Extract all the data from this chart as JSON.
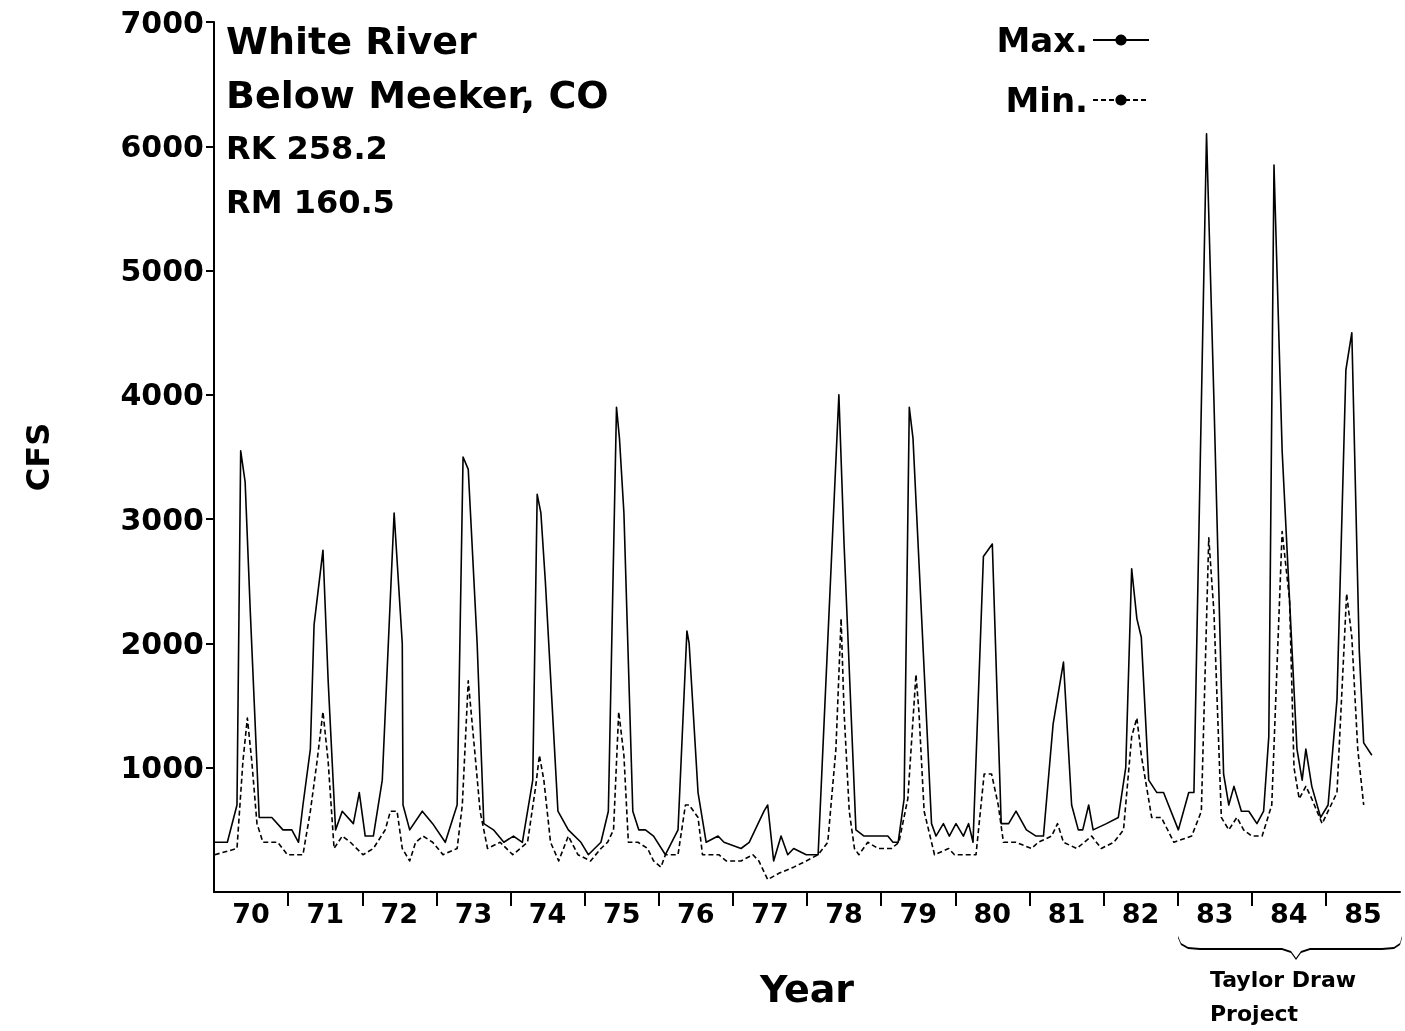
{
  "chart_data": {
    "type": "line",
    "title": "White River",
    "subtitle": "Below Meeker, CO",
    "xlabel": "Year",
    "ylabel": "CFS",
    "annotations": [
      "RK 258.2",
      "RM 160.5",
      "Taylor Draw Project"
    ],
    "xlim": [
      70,
      86
    ],
    "xticks": [
      {
        "value": 70.5,
        "label": "70"
      },
      {
        "value": 71,
        "label": null
      },
      {
        "value": 71.5,
        "label": "71"
      },
      {
        "value": 72,
        "label": null
      },
      {
        "value": 72.5,
        "label": "72"
      },
      {
        "value": 73,
        "label": null
      },
      {
        "value": 73.5,
        "label": "73"
      },
      {
        "value": 74,
        "label": null
      },
      {
        "value": 74.5,
        "label": "74"
      },
      {
        "value": 75,
        "label": null
      },
      {
        "value": 75.5,
        "label": "75"
      },
      {
        "value": 76,
        "label": null
      },
      {
        "value": 76.5,
        "label": "76"
      },
      {
        "value": 77,
        "label": null
      },
      {
        "value": 77.5,
        "label": "77"
      },
      {
        "value": 78,
        "label": null
      },
      {
        "value": 78.5,
        "label": "78"
      },
      {
        "value": 79,
        "label": null
      },
      {
        "value": 79.5,
        "label": "79"
      },
      {
        "value": 80,
        "label": null
      },
      {
        "value": 80.5,
        "label": "80"
      },
      {
        "value": 81,
        "label": null
      },
      {
        "value": 81.5,
        "label": "81"
      },
      {
        "value": 82,
        "label": null
      },
      {
        "value": 82.5,
        "label": "82"
      },
      {
        "value": 83,
        "label": null
      },
      {
        "value": 83.5,
        "label": "83"
      },
      {
        "value": 84,
        "label": null
      },
      {
        "value": 84.5,
        "label": "84"
      },
      {
        "value": 85,
        "label": null
      },
      {
        "value": 85.5,
        "label": "85"
      }
    ],
    "ylim": [
      0,
      7000
    ],
    "yticks": [
      1000,
      2000,
      3000,
      4000,
      5000,
      6000,
      7000
    ],
    "grid": false,
    "legend": "top right",
    "marker": "none",
    "series": [
      {
        "name": "Max.",
        "color": "#000000",
        "line_style": "solid",
        "x": [
          70.01,
          70.18,
          70.31,
          70.36,
          70.42,
          70.49,
          70.61,
          70.78,
          70.93,
          71.05,
          71.14,
          71.2,
          71.3,
          71.35,
          71.47,
          71.54,
          71.64,
          71.73,
          71.88,
          71.96,
          72.04,
          72.15,
          72.27,
          72.43,
          72.54,
          72.55,
          72.64,
          72.81,
          72.95,
          73.12,
          73.28,
          73.36,
          73.43,
          73.55,
          73.64,
          73.77,
          73.91,
          74.04,
          74.16,
          74.3,
          74.36,
          74.41,
          74.47,
          74.64,
          74.78,
          74.95,
          75.05,
          75.22,
          75.32,
          75.43,
          75.47,
          75.53,
          75.65,
          75.73,
          75.82,
          75.93,
          76.09,
          76.26,
          76.38,
          76.41,
          76.53,
          76.64,
          76.8,
          76.88,
          77.11,
          77.22,
          77.42,
          77.47,
          77.55,
          77.65,
          77.74,
          77.82,
          77.99,
          78.15,
          78.43,
          78.5,
          78.66,
          78.77,
          79.09,
          79.16,
          79.23,
          79.31,
          79.38,
          79.43,
          79.68,
          79.74,
          79.84,
          79.92,
          80.01,
          80.11,
          80.18,
          80.24,
          80.38,
          80.5,
          80.62,
          80.72,
          80.82,
          80.96,
          81.09,
          81.19,
          81.32,
          81.46,
          81.57,
          81.66,
          81.72,
          81.8,
          81.86,
          82.04,
          82.2,
          82.3,
          82.38,
          82.45,
          82.51,
          82.61,
          82.72,
          82.81,
          83.01,
          83.15,
          83.22,
          83.39,
          83.49,
          83.62,
          83.69,
          83.76,
          83.86,
          83.96,
          84.07,
          84.16,
          84.23,
          84.3,
          84.41,
          84.61,
          84.68,
          84.73,
          84.81,
          84.93,
          85.03,
          85.15,
          85.27,
          85.35,
          85.45,
          85.51,
          85.62
        ],
        "values": [
          400,
          400,
          700,
          3550,
          3300,
          2250,
          600,
          600,
          500,
          500,
          400,
          700,
          1150,
          2150,
          2750,
          1700,
          500,
          650,
          550,
          800,
          450,
          450,
          900,
          3050,
          2000,
          700,
          500,
          650,
          550,
          400,
          700,
          3500,
          3400,
          2000,
          550,
          500,
          400,
          450,
          400,
          900,
          3200,
          3050,
          2500,
          650,
          500,
          400,
          300,
          400,
          650,
          3900,
          3650,
          3050,
          650,
          500,
          500,
          450,
          300,
          500,
          2100,
          2000,
          800,
          400,
          450,
          400,
          350,
          400,
          650,
          700,
          250,
          450,
          300,
          350,
          300,
          300,
          4000,
          2800,
          500,
          450,
          450,
          400,
          400,
          750,
          3900,
          3650,
          550,
          450,
          550,
          450,
          550,
          450,
          550,
          400,
          2700,
          2800,
          550,
          550,
          650,
          500,
          450,
          450,
          1350,
          1850,
          700,
          500,
          500,
          700,
          500,
          550,
          600,
          1000,
          2600,
          2200,
          2050,
          900,
          800,
          800,
          500,
          800,
          800,
          6100,
          3950,
          950,
          700,
          850,
          650,
          650,
          550,
          650,
          1250,
          5850,
          3550,
          1150,
          900,
          1150,
          850,
          600,
          700,
          1550,
          4200,
          4500,
          1950,
          1200,
          1100
        ]
      },
      {
        "name": "Min.",
        "color": "#000000",
        "line_style": "dashed",
        "x": [
          70.01,
          70.31,
          70.39,
          70.45,
          70.51,
          70.58,
          70.66,
          70.86,
          70.99,
          71.2,
          71.3,
          71.39,
          71.47,
          71.54,
          71.62,
          71.73,
          71.84,
          72.01,
          72.15,
          72.31,
          72.38,
          72.47,
          72.54,
          72.64,
          72.72,
          72.82,
          72.95,
          73.09,
          73.28,
          73.35,
          73.43,
          73.53,
          73.59,
          73.69,
          73.86,
          74.03,
          74.23,
          74.34,
          74.39,
          74.45,
          74.54,
          74.65,
          74.78,
          74.91,
          75.08,
          75.22,
          75.31,
          75.39,
          75.46,
          75.53,
          75.59,
          75.72,
          75.85,
          75.93,
          76.03,
          76.09,
          76.26,
          76.36,
          76.41,
          76.53,
          76.59,
          76.74,
          76.81,
          76.91,
          77.11,
          77.27,
          77.35,
          77.47,
          77.62,
          77.82,
          77.99,
          78.15,
          78.28,
          78.39,
          78.46,
          78.5,
          78.57,
          78.64,
          78.7,
          78.82,
          78.96,
          79.14,
          79.24,
          79.36,
          79.47,
          79.51,
          79.58,
          79.72,
          79.91,
          79.99,
          80.12,
          80.28,
          80.39,
          80.49,
          80.58,
          80.65,
          80.82,
          81.03,
          81.12,
          81.3,
          81.38,
          81.46,
          81.64,
          81.84,
          81.97,
          82.14,
          82.27,
          82.38,
          82.45,
          82.51,
          82.65,
          82.78,
          82.95,
          83.19,
          83.32,
          83.42,
          83.49,
          83.59,
          83.69,
          83.8,
          83.89,
          84,
          84.14,
          84.27,
          84.41,
          84.51,
          84.57,
          84.64,
          84.73,
          84.81,
          84.95,
          85.15,
          85.28,
          85.35,
          85.43,
          85.51
        ],
        "values": [
          300,
          350,
          1050,
          1400,
          1050,
          550,
          400,
          400,
          300,
          300,
          650,
          1050,
          1450,
          1050,
          350,
          450,
          400,
          300,
          350,
          500,
          650,
          650,
          350,
          250,
          400,
          450,
          400,
          300,
          350,
          700,
          1700,
          1050,
          650,
          350,
          400,
          300,
          400,
          850,
          1100,
          900,
          400,
          250,
          450,
          300,
          250,
          350,
          400,
          500,
          1450,
          1100,
          400,
          400,
          350,
          250,
          200,
          300,
          300,
          700,
          700,
          600,
          300,
          300,
          300,
          250,
          250,
          300,
          250,
          100,
          150,
          200,
          250,
          300,
          400,
          1150,
          2200,
          1450,
          650,
          350,
          300,
          400,
          350,
          350,
          400,
          750,
          1750,
          1450,
          650,
          300,
          350,
          300,
          300,
          300,
          950,
          950,
          700,
          400,
          400,
          350,
          400,
          450,
          550,
          400,
          350,
          450,
          350,
          400,
          500,
          1250,
          1400,
          1100,
          600,
          600,
          400,
          450,
          650,
          2850,
          2250,
          600,
          500,
          600,
          500,
          450,
          450,
          700,
          2900,
          2350,
          1000,
          750,
          850,
          750,
          550,
          800,
          2400,
          2050,
          1150,
          700
        ]
      }
    ]
  }
}
